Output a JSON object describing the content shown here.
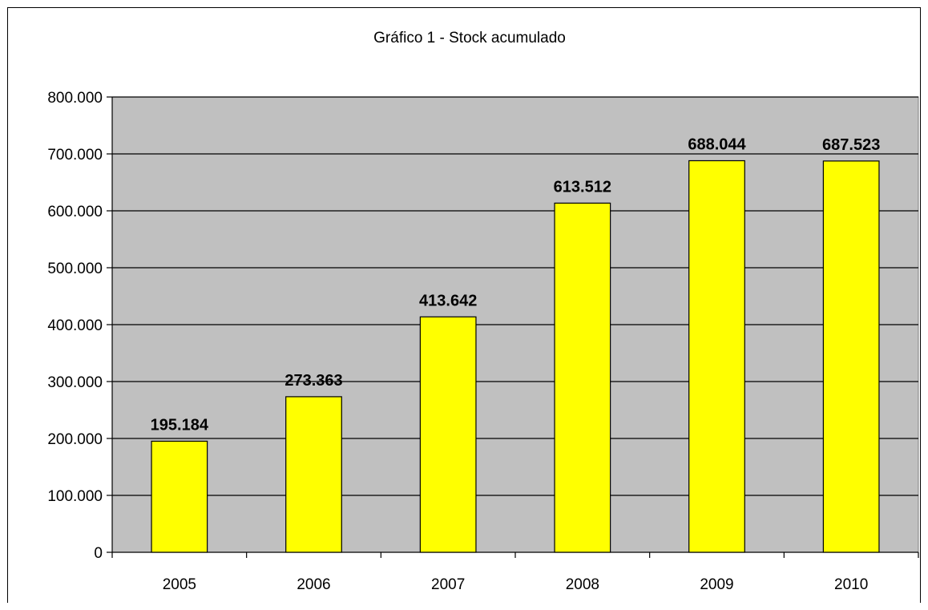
{
  "chart_data": {
    "type": "bar",
    "title": "Gráfico 1 - Stock acumulado",
    "xlabel": "",
    "ylabel": "",
    "categories": [
      "2005",
      "2006",
      "2007",
      "2008",
      "2009",
      "2010"
    ],
    "values": [
      195184,
      273363,
      413642,
      613512,
      688044,
      687523
    ],
    "value_labels": [
      "195.184",
      "273.363",
      "413.642",
      "613.512",
      "688.044",
      "687.523"
    ],
    "ylim": [
      0,
      800000
    ],
    "yticks": [
      0,
      100000,
      200000,
      300000,
      400000,
      500000,
      600000,
      700000,
      800000
    ],
    "ytick_labels": [
      "0",
      "100.000",
      "200.000",
      "300.000",
      "400.000",
      "500.000",
      "600.000",
      "700.000",
      "800.000"
    ],
    "grid": true,
    "legend": "none",
    "colors": {
      "bar_fill": "#FFFF00",
      "bar_stroke": "#000000",
      "plot_background": "#C0C0C0",
      "gridline": "#000000"
    }
  }
}
